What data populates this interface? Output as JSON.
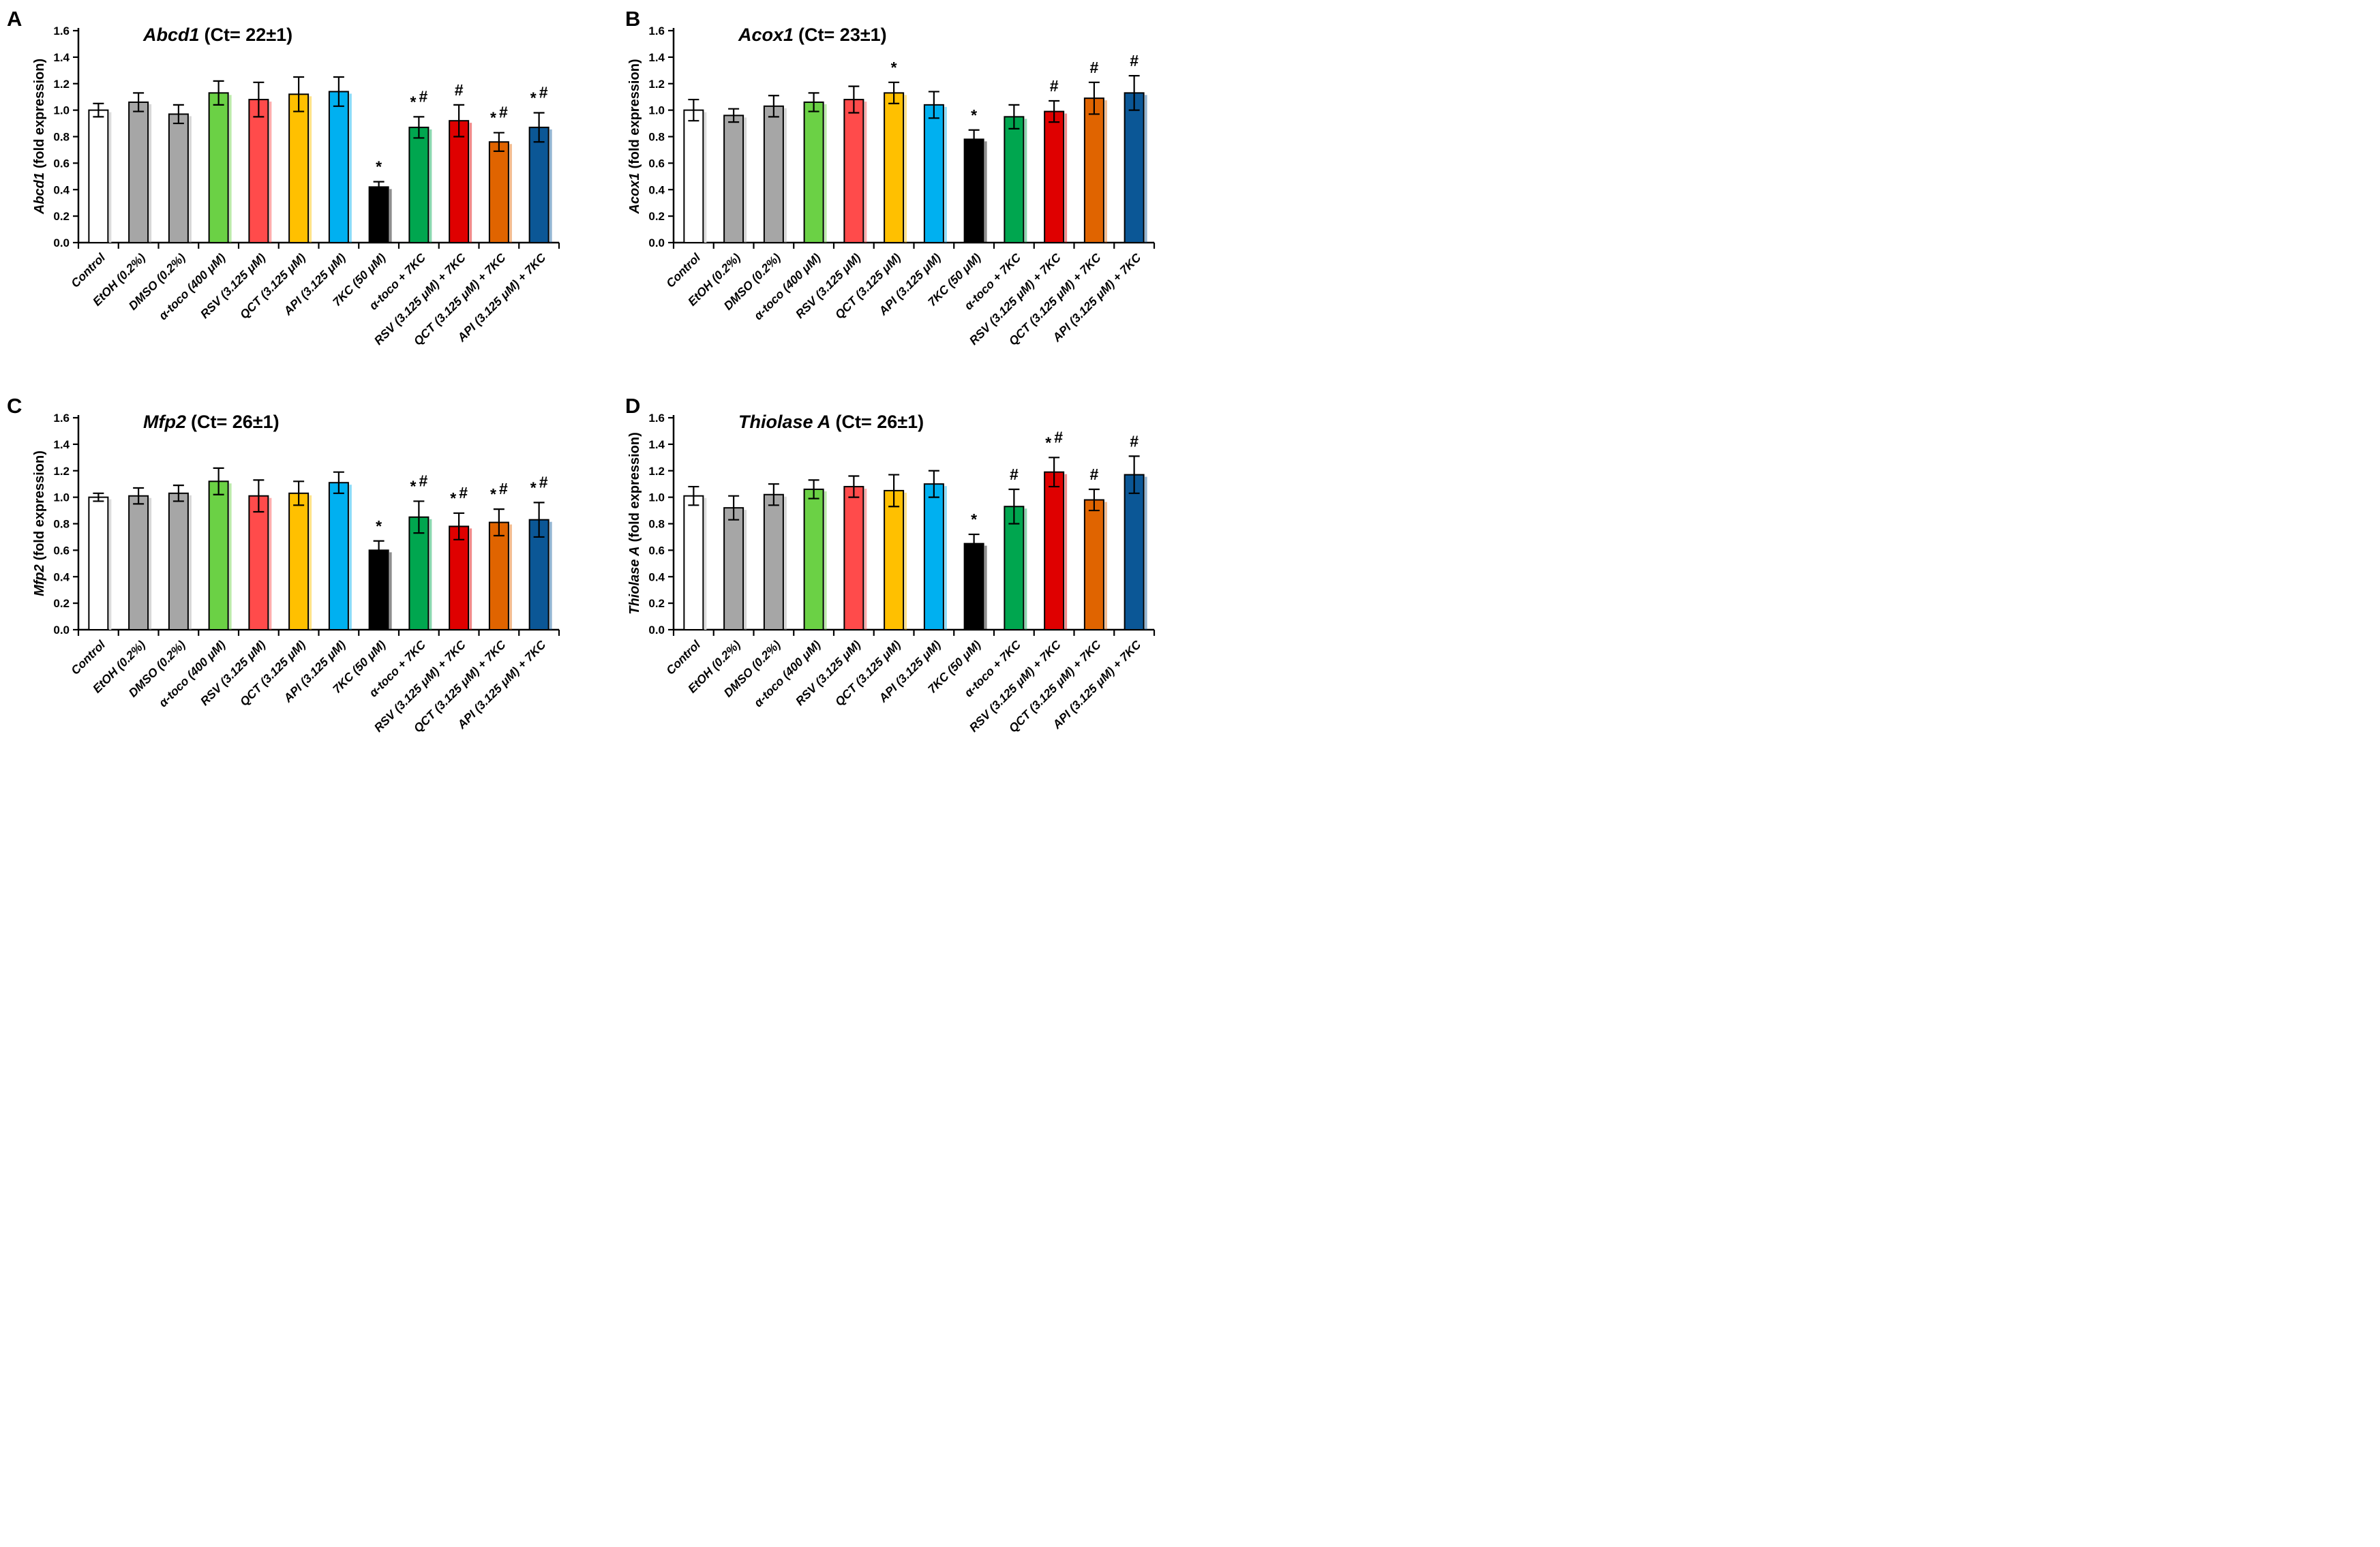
{
  "figure": {
    "description": "Four-panel bar figure of peroxisomal gene expression (RT-qPCR fold expression) under 7KC and polyphenol/tocopherol treatments"
  },
  "style": {
    "bar_colors": [
      "#FFFFFF",
      "#A6A6A6",
      "#A6A6A6",
      "#6BD145",
      "#FF4B4B",
      "#FFC000",
      "#00B0F0",
      "#000000",
      "#00A64F",
      "#DF0000",
      "#E06400",
      "#0B5796"
    ],
    "bar_outline": "#000000",
    "error_bar_color": "#000000",
    "axis_color": "#000000",
    "background": "#FFFFFF"
  },
  "chart_data": [
    {
      "type": "bar",
      "panel": "A",
      "title_gene": "Abcd1",
      "title_ct": "(Ct= 22±1)",
      "ylabel_gene": "Abcd1",
      "ylabel_rest": "(fold expression)",
      "ylim": [
        0,
        1.6
      ],
      "ytick_step": 0.2,
      "ytick_labels": [
        "0.0",
        "0.2",
        "0.4",
        "0.6",
        "0.8",
        "1.0",
        "1.2",
        "1.4",
        "1.6"
      ],
      "grid": "off",
      "legend": "none",
      "categories": [
        "Control",
        "EtOH (0.2%)",
        "DMSO (0.2%)",
        "α-toco (400 μM)",
        "RSV (3.125 μM)",
        "QCT (3.125 μM)",
        "API (3.125 μM)",
        "7KC (50 μM)",
        "α-toco + 7KC",
        "RSV (3.125 μM) + 7KC",
        "QCT (3.125 μM) + 7KC",
        "API (3.125 μM) + 7KC"
      ],
      "values": [
        1.0,
        1.06,
        0.97,
        1.13,
        1.08,
        1.12,
        1.14,
        0.42,
        0.87,
        0.92,
        0.76,
        0.87
      ],
      "errors": [
        0.05,
        0.07,
        0.07,
        0.09,
        0.13,
        0.13,
        0.11,
        0.04,
        0.08,
        0.12,
        0.07,
        0.11
      ],
      "sig": [
        "",
        "",
        "",
        "",
        "",
        "",
        "",
        "*",
        "*#",
        "#",
        "*#",
        "*#"
      ]
    },
    {
      "type": "bar",
      "panel": "B",
      "title_gene": "Acox1",
      "title_ct": "(Ct= 23±1)",
      "ylabel_gene": "Acox1",
      "ylabel_rest": "(fold expression)",
      "ylim": [
        0,
        1.6
      ],
      "ytick_step": 0.2,
      "ytick_labels": [
        "0.0",
        "0.2",
        "0.4",
        "0.6",
        "0.8",
        "1.0",
        "1.2",
        "1.4",
        "1.6"
      ],
      "grid": "off",
      "legend": "none",
      "categories": [
        "Control",
        "EtOH (0.2%)",
        "DMSO (0.2%)",
        "α-toco (400 μM)",
        "RSV (3.125 μM)",
        "QCT (3.125 μM)",
        "API (3.125 μM)",
        "7KC (50 μM)",
        "α-toco + 7KC",
        "RSV (3.125 μM) + 7KC",
        "QCT (3.125 μM) + 7KC",
        "API (3.125 μM) + 7KC"
      ],
      "values": [
        1.0,
        0.96,
        1.03,
        1.06,
        1.08,
        1.13,
        1.04,
        0.78,
        0.95,
        0.99,
        1.09,
        1.13
      ],
      "errors": [
        0.08,
        0.05,
        0.08,
        0.07,
        0.1,
        0.08,
        0.1,
        0.07,
        0.09,
        0.08,
        0.12,
        0.13
      ],
      "sig": [
        "",
        "",
        "",
        "",
        "",
        "*",
        "",
        "*",
        "",
        "#",
        "#",
        "#"
      ]
    },
    {
      "type": "bar",
      "panel": "C",
      "title_gene": "Mfp2",
      "title_ct": "(Ct= 26±1)",
      "ylabel_gene": "Mfp2",
      "ylabel_rest": "(fold expression)",
      "ylim": [
        0,
        1.6
      ],
      "ytick_step": 0.2,
      "ytick_labels": [
        "0.0",
        "0.2",
        "0.4",
        "0.6",
        "0.8",
        "1.0",
        "1.2",
        "1.4",
        "1.6"
      ],
      "grid": "off",
      "legend": "none",
      "categories": [
        "Control",
        "EtOH (0.2%)",
        "DMSO (0.2%)",
        "α-toco (400 μM)",
        "RSV (3.125 μM)",
        "QCT (3.125 μM)",
        "API (3.125 μM)",
        "7KC (50 μM)",
        "α-toco + 7KC",
        "RSV (3.125 μM) + 7KC",
        "QCT (3.125 μM) + 7KC",
        "API (3.125 μM) + 7KC"
      ],
      "values": [
        1.0,
        1.01,
        1.03,
        1.12,
        1.01,
        1.03,
        1.11,
        0.6,
        0.85,
        0.78,
        0.81,
        0.83
      ],
      "errors": [
        0.03,
        0.06,
        0.06,
        0.1,
        0.12,
        0.09,
        0.08,
        0.07,
        0.12,
        0.1,
        0.1,
        0.13
      ],
      "sig": [
        "",
        "",
        "",
        "",
        "",
        "",
        "",
        "*",
        "*#",
        "*#",
        "*#",
        "*#"
      ]
    },
    {
      "type": "bar",
      "panel": "D",
      "title_gene": "Thiolase A",
      "title_ct": "(Ct= 26±1)",
      "ylabel_gene": "Thiolase A",
      "ylabel_rest": "(fold expression)",
      "ylim": [
        0,
        1.6
      ],
      "ytick_step": 0.2,
      "ytick_labels": [
        "0.0",
        "0.2",
        "0.4",
        "0.6",
        "0.8",
        "1.0",
        "1.2",
        "1.4",
        "1.6"
      ],
      "grid": "off",
      "legend": "none",
      "categories": [
        "Control",
        "EtOH (0.2%)",
        "DMSO (0.2%)",
        "α-toco (400 μM)",
        "RSV (3.125 μM)",
        "QCT (3.125 μM)",
        "API (3.125 μM)",
        "7KC (50 μM)",
        "α-toco + 7KC",
        "RSV (3.125 μM) + 7KC",
        "QCT (3.125 μM) + 7KC",
        "API (3.125 μM) + 7KC"
      ],
      "values": [
        1.01,
        0.92,
        1.02,
        1.06,
        1.08,
        1.05,
        1.1,
        0.65,
        0.93,
        1.19,
        0.98,
        1.17
      ],
      "errors": [
        0.07,
        0.09,
        0.08,
        0.07,
        0.08,
        0.12,
        0.1,
        0.07,
        0.13,
        0.11,
        0.08,
        0.14
      ],
      "sig": [
        "",
        "",
        "",
        "",
        "",
        "",
        "",
        "*",
        "#",
        "*#",
        "#",
        "#"
      ]
    }
  ]
}
